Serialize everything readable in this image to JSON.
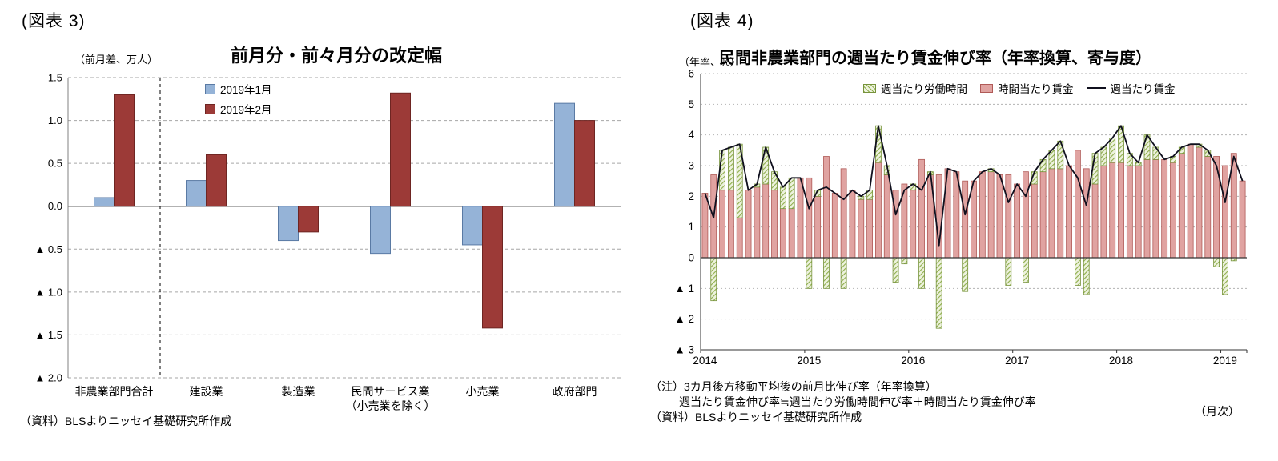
{
  "fig3": {
    "label": "(図表 3)",
    "title": "前月分・前々月分の改定幅",
    "unit_label": "（前月差、万人）",
    "source": "（資料）BLSよりニッセイ基礎研究所作成"
  },
  "fig4": {
    "label": "(図表 4)",
    "unit_label": "（年率、%）",
    "title": "民間非農業部門の週当たり賃金伸び率（年率換算、寄与度）",
    "notes": [
      "（注）3カ月後方移動平均後の前月比伸び率（年率換算）",
      "週当たり賃金伸び率≒週当たり労働時間伸び率＋時間当たり賃金伸び率",
      "（資料）BLSよりニッセイ基礎研究所作成"
    ],
    "freq_label": "（月次）"
  },
  "chart_data": [
    {
      "id": "fig3",
      "type": "bar",
      "title": "前月分・前々月分の改定幅",
      "ylabel": "（前月差、万人）",
      "ylim": [
        -2.0,
        1.5
      ],
      "ytick_step": 0.5,
      "ytick_labels": [
        "1.5",
        "1.0",
        "0.5",
        "0.0",
        "▲ 0.5",
        "▲ 1.0",
        "▲ 1.5",
        "▲ 2.0"
      ],
      "grid": true,
      "separator_after_category_index": 0,
      "categories": [
        "非農業部門合計",
        "建設業",
        "製造業",
        "民間サービス業\n（小売業を除く）",
        "小売業",
        "政府部門"
      ],
      "series": [
        {
          "name": "2019年1月",
          "color": "#95B3D7",
          "border": "#5A7AA4",
          "values": [
            0.1,
            0.3,
            -0.4,
            -0.55,
            -0.45,
            1.2
          ]
        },
        {
          "name": "2019年2月",
          "color": "#9C3A37",
          "border": "#6E2522",
          "values": [
            1.3,
            0.6,
            -0.3,
            1.32,
            -1.42,
            1.0
          ]
        }
      ]
    },
    {
      "id": "fig4",
      "type": "stacked-bar-line",
      "title": "民間非農業部門の週当たり賃金伸び率（年率換算、寄与度）",
      "ylabel": "（年率、%）",
      "ylim": [
        -3,
        6
      ],
      "ytick_step": 1,
      "ytick_labels": [
        "6",
        "5",
        "4",
        "3",
        "2",
        "1",
        "0",
        "▲ 1",
        "▲ 2",
        "▲ 3"
      ],
      "grid": true,
      "legend_position": "top-inside",
      "x_start": "2014-01",
      "x_freq": "monthly",
      "xticks": [
        {
          "month": 0,
          "label": "2014"
        },
        {
          "month": 12,
          "label": "2015"
        },
        {
          "month": 24,
          "label": "2016"
        },
        {
          "month": 36,
          "label": "2017"
        },
        {
          "month": 48,
          "label": "2018"
        },
        {
          "month": 60,
          "label": "2019"
        }
      ],
      "series": [
        {
          "name": "週当たり労働時間",
          "type": "bar",
          "color": "#EDF2DE",
          "hatch": "#8FAE4C",
          "border": "#77933C",
          "values": [
            0.0,
            -1.4,
            1.3,
            1.4,
            2.4,
            0.0,
            0.1,
            1.2,
            0.6,
            0.7,
            1.0,
            0.0,
            -1.0,
            0.2,
            -1.0,
            0.0,
            -1.0,
            0.0,
            0.1,
            0.3,
            1.2,
            0.3,
            -0.8,
            -0.2,
            0.2,
            -1.0,
            0.1,
            -2.3,
            0.0,
            0.0,
            -1.1,
            0.0,
            0.0,
            0.1,
            0.0,
            -0.9,
            0.0,
            -0.8,
            0.4,
            0.4,
            0.6,
            0.9,
            0.0,
            -0.9,
            -1.2,
            1.0,
            0.6,
            0.8,
            1.2,
            0.4,
            0.1,
            0.8,
            0.4,
            0.0,
            0.2,
            0.2,
            0.0,
            0.1,
            0.2,
            -0.3,
            -1.2,
            -0.1,
            0.0
          ]
        },
        {
          "name": "時間当たり賃金",
          "type": "bar",
          "color": "#E0A3A1",
          "border": "#B05A57",
          "values": [
            2.1,
            2.7,
            2.2,
            2.2,
            1.3,
            2.2,
            2.3,
            2.4,
            2.2,
            1.6,
            1.6,
            2.6,
            2.6,
            2.0,
            3.3,
            2.1,
            2.9,
            2.2,
            1.9,
            1.9,
            3.1,
            2.7,
            2.2,
            2.4,
            2.2,
            3.2,
            2.7,
            2.7,
            2.9,
            2.8,
            2.5,
            2.5,
            2.8,
            2.8,
            2.7,
            2.7,
            2.4,
            2.8,
            2.4,
            2.8,
            2.9,
            2.9,
            3.0,
            3.5,
            2.9,
            2.4,
            3.0,
            3.1,
            3.1,
            3.0,
            3.0,
            3.2,
            3.2,
            3.2,
            3.1,
            3.4,
            3.7,
            3.6,
            3.3,
            3.3,
            3.0,
            3.4,
            2.5
          ]
        },
        {
          "name": "週当たり賃金",
          "type": "line",
          "color": "#10101E",
          "values": [
            2.1,
            1.3,
            3.5,
            3.6,
            3.7,
            2.2,
            2.4,
            3.6,
            2.8,
            2.3,
            2.6,
            2.6,
            1.6,
            2.2,
            2.3,
            2.1,
            1.9,
            2.2,
            2.0,
            2.2,
            4.3,
            3.0,
            1.4,
            2.2,
            2.4,
            2.2,
            2.8,
            0.4,
            2.9,
            2.8,
            1.4,
            2.5,
            2.8,
            2.9,
            2.7,
            1.8,
            2.4,
            2.0,
            2.8,
            3.2,
            3.5,
            3.8,
            3.0,
            2.6,
            1.7,
            3.4,
            3.6,
            3.9,
            4.3,
            3.4,
            3.1,
            4.0,
            3.6,
            3.2,
            3.3,
            3.6,
            3.7,
            3.7,
            3.5,
            3.0,
            1.8,
            3.3,
            2.5
          ]
        }
      ]
    }
  ]
}
